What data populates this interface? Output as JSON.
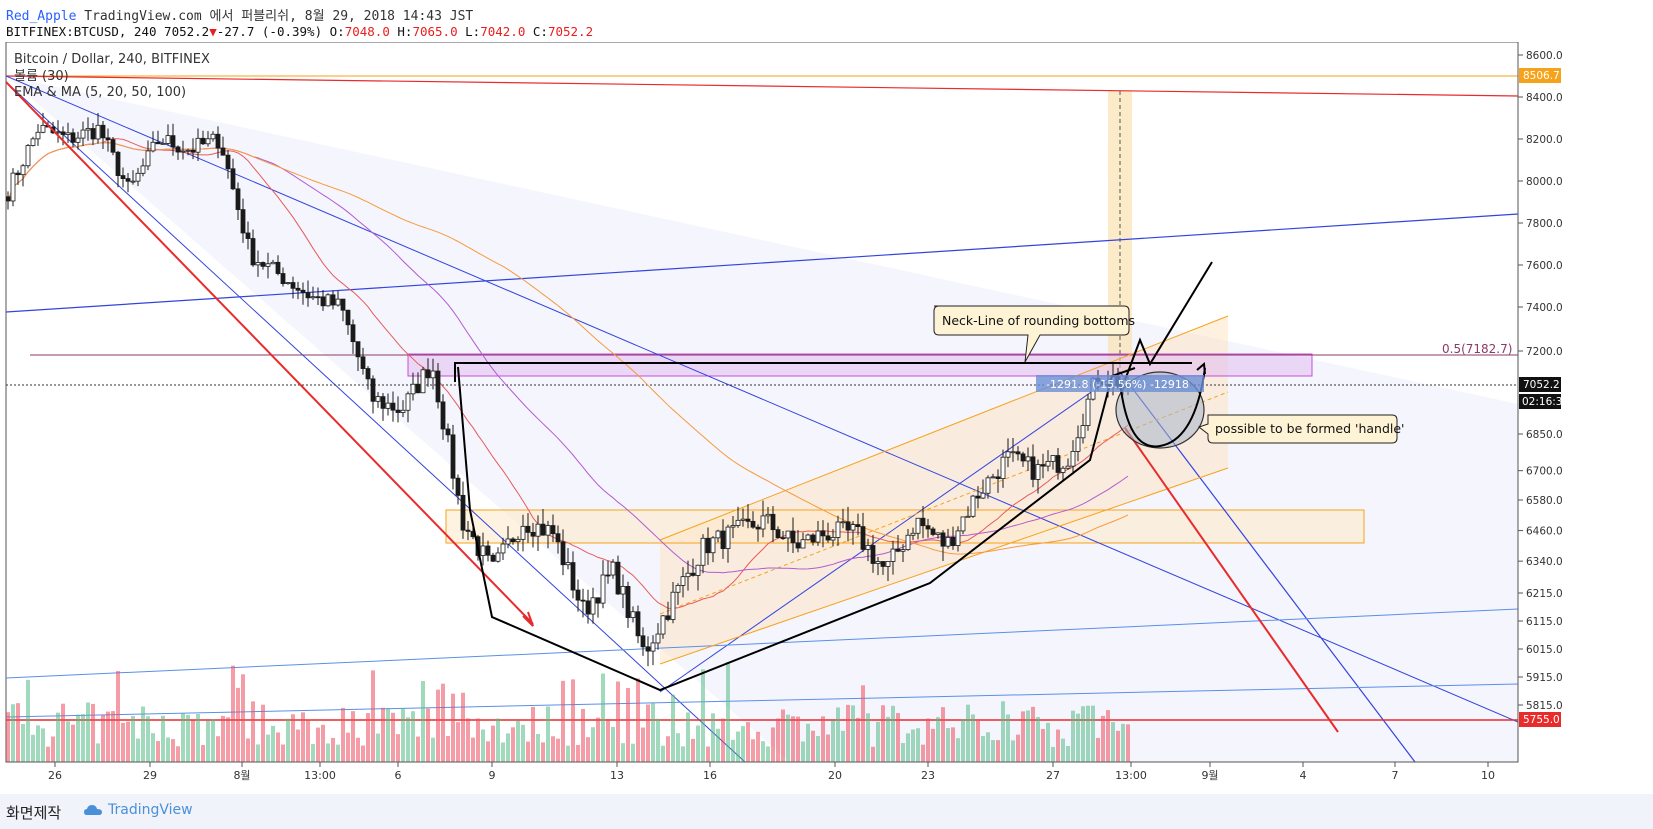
{
  "header": {
    "author": "Red_Apple",
    "published": "TradingView.com 에서 퍼블리쉬, 8월 29, 2018 14:43 JST",
    "symbol": "BITFINEX:BTCUSD, 240",
    "last": "7052.2",
    "down_arrow": "▼",
    "change": "-27.7 (-0.39%)",
    "o_label": "O:",
    "o_value": "7048.0",
    "h_label": "H:",
    "h_value": "7065.0",
    "l_label": "L:",
    "l_value": "7042.0",
    "c_label": "C:",
    "c_value": "7052.2"
  },
  "legend": {
    "title": "Bitcoin / Dollar, 240, BITFINEX",
    "volume": "볼륨 (30)",
    "ma": "EMA & MA (5, 20, 50, 100)"
  },
  "annotations": {
    "neckline": "Neck-Line of rounding bottoms",
    "handle": "possible to be formed 'handle'",
    "fib": "0.5(7182.7)",
    "measure": "-1291.8 (-15.56%) -12918"
  },
  "price_tags": {
    "top": "8506.7",
    "last": "7052.2",
    "timer": "02:16:31",
    "bottom": "5755.0"
  },
  "footer": {
    "made_by": "화면제작",
    "brand": "TradingView"
  },
  "colors": {
    "up": "#53b987",
    "down": "#eb4d5c",
    "candle": "#1a1a1a",
    "trend_blue": "#3344dd",
    "trend_red": "#e82b2b",
    "orange": "#f7a21b",
    "purple": "#c84ddc"
  },
  "chart_data": {
    "type": "candlestick",
    "symbol": "BITFINEX:BTCUSD",
    "interval": "240",
    "ylim": [
      5755,
      8650
    ],
    "y_ticks": [
      8600.0,
      8400.0,
      8200.0,
      8000.0,
      7800.0,
      7600.0,
      7400.0,
      7200.0,
      6850.0,
      6700.0,
      6580.0,
      6460.0,
      6340.0,
      6215.0,
      6115.0,
      6015.0,
      5915.0,
      5815.0
    ],
    "x_ticks": [
      "26",
      "29",
      "8월",
      "13:00",
      "6",
      "9",
      "13",
      "16",
      "20",
      "23",
      "27",
      "13:00",
      "9월",
      "4",
      "7",
      "10"
    ],
    "close_path": [
      {
        "t": "Jul 24",
        "close": 7950
      },
      {
        "t": "Jul 25",
        "close": 8250
      },
      {
        "t": "Jul 26",
        "close": 8200
      },
      {
        "t": "Jul 27",
        "close": 8250
      },
      {
        "t": "Jul 28",
        "close": 7950
      },
      {
        "t": "Jul 29",
        "close": 8200
      },
      {
        "t": "Jul 30",
        "close": 8150
      },
      {
        "t": "Jul 31",
        "close": 8200
      },
      {
        "t": "Aug 1",
        "close": 7650
      },
      {
        "t": "Aug 2",
        "close": 7550
      },
      {
        "t": "Aug 3",
        "close": 7450
      },
      {
        "t": "Aug 4",
        "close": 7400
      },
      {
        "t": "Aug 5",
        "close": 7000
      },
      {
        "t": "Aug 6",
        "close": 6950
      },
      {
        "t": "Aug 7",
        "close": 7150
      },
      {
        "t": "Aug 8",
        "close": 6500
      },
      {
        "t": "Aug 9",
        "close": 6300
      },
      {
        "t": "Aug 10",
        "close": 6500
      },
      {
        "t": "Aug 11",
        "close": 6450
      },
      {
        "t": "Aug 12",
        "close": 6150
      },
      {
        "t": "Aug 13",
        "close": 6300
      },
      {
        "t": "Aug 14",
        "close": 6000
      },
      {
        "t": "Aug 15",
        "close": 6200
      },
      {
        "t": "Aug 16",
        "close": 6400
      },
      {
        "t": "Aug 17",
        "close": 6450
      },
      {
        "t": "Aug 18",
        "close": 6500
      },
      {
        "t": "Aug 19",
        "close": 6400
      },
      {
        "t": "Aug 20",
        "close": 6450
      },
      {
        "t": "Aug 21",
        "close": 6450
      },
      {
        "t": "Aug 22",
        "close": 6300
      },
      {
        "t": "Aug 23",
        "close": 6500
      },
      {
        "t": "Aug 24",
        "close": 6400
      },
      {
        "t": "Aug 25",
        "close": 6600
      },
      {
        "t": "Aug 26",
        "close": 6750
      },
      {
        "t": "Aug 27",
        "close": 6700
      },
      {
        "t": "Aug 28",
        "close": 6750
      },
      {
        "t": "Aug 29",
        "close": 7100
      },
      {
        "t": "Aug 29 last",
        "close": 7052.2
      }
    ]
  }
}
